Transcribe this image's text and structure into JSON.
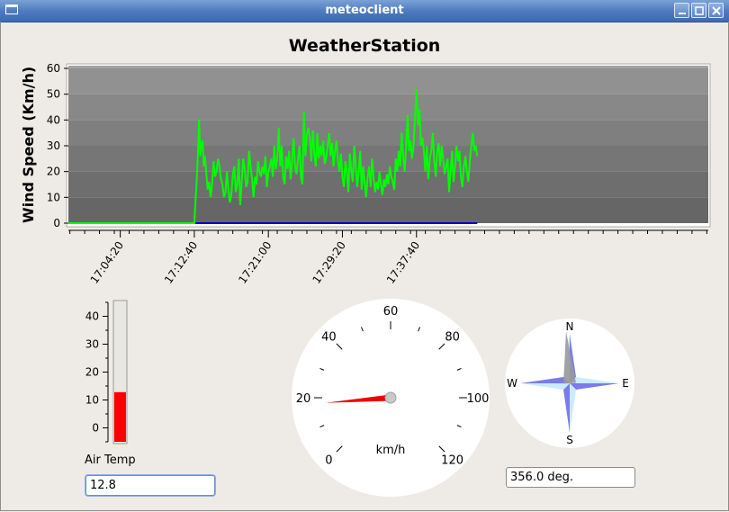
{
  "window": {
    "title": "meteoclient"
  },
  "chart_data": {
    "type": "line",
    "title": "WeatherStation",
    "ylabel": "Wind Speed (Km/h)",
    "xlabel": "",
    "ylim": [
      0,
      60
    ],
    "yticks": [
      0,
      10,
      20,
      30,
      40,
      50,
      60
    ],
    "xlim": [
      "16:58:30",
      "18:10:30"
    ],
    "xticks": [
      "17:04:20",
      "17:12:40",
      "17:21:00",
      "17:29:20",
      "17:37:40"
    ],
    "grid_bands": true,
    "series": [
      {
        "color": "#00ff00",
        "points": [
          [
            "16:58:30",
            0
          ],
          [
            "17:12:40",
            0
          ],
          [
            "17:12:48",
            8
          ],
          [
            "17:12:56",
            16
          ],
          [
            "17:13:04",
            26
          ],
          [
            "17:13:12",
            40
          ],
          [
            "17:13:20",
            26
          ],
          [
            "17:13:28",
            31
          ],
          [
            "17:13:36",
            32
          ],
          [
            "17:13:44",
            22
          ],
          [
            "17:13:52",
            26
          ],
          [
            "17:14:00",
            20
          ],
          [
            "17:14:10",
            13
          ],
          [
            "17:14:20",
            16
          ],
          [
            "17:14:30",
            10
          ],
          [
            "17:14:40",
            15
          ],
          [
            "17:14:50",
            24
          ],
          [
            "17:15:00",
            18
          ],
          [
            "17:15:10",
            20
          ],
          [
            "17:15:20",
            25
          ],
          [
            "17:15:30",
            22
          ],
          [
            "17:15:40",
            17
          ],
          [
            "17:15:50",
            15
          ],
          [
            "17:16:00",
            10
          ],
          [
            "17:16:10",
            12
          ],
          [
            "17:16:20",
            20
          ],
          [
            "17:16:30",
            13
          ],
          [
            "17:16:40",
            8
          ],
          [
            "17:16:50",
            11
          ],
          [
            "17:17:00",
            19
          ],
          [
            "17:17:10",
            22
          ],
          [
            "17:17:20",
            12
          ],
          [
            "17:17:30",
            15
          ],
          [
            "17:17:40",
            25
          ],
          [
            "17:17:50",
            7
          ],
          [
            "17:18:00",
            16
          ],
          [
            "17:18:10",
            25
          ],
          [
            "17:18:20",
            21
          ],
          [
            "17:18:30",
            14
          ],
          [
            "17:18:40",
            16
          ],
          [
            "17:18:50",
            28
          ],
          [
            "17:19:00",
            22
          ],
          [
            "17:19:10",
            17
          ],
          [
            "17:19:20",
            10
          ],
          [
            "17:19:30",
            18
          ],
          [
            "17:19:40",
            15
          ],
          [
            "17:19:50",
            24
          ],
          [
            "17:20:00",
            20
          ],
          [
            "17:20:10",
            18
          ],
          [
            "17:20:20",
            22
          ],
          [
            "17:20:30",
            19
          ],
          [
            "17:20:40",
            26
          ],
          [
            "17:20:50",
            14
          ],
          [
            "17:21:00",
            20
          ],
          [
            "17:21:10",
            22
          ],
          [
            "17:21:20",
            25
          ],
          [
            "17:21:30",
            18
          ],
          [
            "17:21:40",
            30
          ],
          [
            "17:21:50",
            21
          ],
          [
            "17:22:00",
            25
          ],
          [
            "17:22:10",
            37
          ],
          [
            "17:22:20",
            22
          ],
          [
            "17:22:30",
            30
          ],
          [
            "17:22:40",
            18
          ],
          [
            "17:22:50",
            15
          ],
          [
            "17:23:00",
            26
          ],
          [
            "17:23:10",
            21
          ],
          [
            "17:23:20",
            28
          ],
          [
            "17:23:30",
            17
          ],
          [
            "17:23:40",
            24
          ],
          [
            "17:23:50",
            33
          ],
          [
            "17:24:00",
            22
          ],
          [
            "17:24:10",
            19
          ],
          [
            "17:24:20",
            25
          ],
          [
            "17:24:30",
            30
          ],
          [
            "17:24:40",
            18
          ],
          [
            "17:24:50",
            15
          ],
          [
            "17:25:00",
            43
          ],
          [
            "17:25:10",
            26
          ],
          [
            "17:25:20",
            34
          ],
          [
            "17:25:30",
            37
          ],
          [
            "17:25:40",
            33
          ],
          [
            "17:25:50",
            24
          ],
          [
            "17:26:00",
            36
          ],
          [
            "17:26:10",
            27
          ],
          [
            "17:26:20",
            22
          ],
          [
            "17:26:30",
            35
          ],
          [
            "17:26:40",
            25
          ],
          [
            "17:26:50",
            30
          ],
          [
            "17:27:00",
            26
          ],
          [
            "17:27:10",
            32
          ],
          [
            "17:27:20",
            23
          ],
          [
            "17:27:30",
            25
          ],
          [
            "17:27:40",
            30
          ],
          [
            "17:27:50",
            35
          ],
          [
            "17:28:00",
            26
          ],
          [
            "17:28:10",
            31
          ],
          [
            "17:28:20",
            22
          ],
          [
            "17:28:30",
            28
          ],
          [
            "17:28:40",
            32
          ],
          [
            "17:28:50",
            24
          ],
          [
            "17:29:00",
            20
          ],
          [
            "17:29:10",
            27
          ],
          [
            "17:29:20",
            18
          ],
          [
            "17:29:30",
            14
          ],
          [
            "17:29:40",
            24
          ],
          [
            "17:29:50",
            20
          ],
          [
            "17:30:00",
            12
          ],
          [
            "17:30:10",
            27
          ],
          [
            "17:30:20",
            20
          ],
          [
            "17:30:30",
            16
          ],
          [
            "17:30:40",
            30
          ],
          [
            "17:30:50",
            22
          ],
          [
            "17:31:00",
            14
          ],
          [
            "17:31:10",
            20
          ],
          [
            "17:31:20",
            28
          ],
          [
            "17:31:30",
            13
          ],
          [
            "17:31:40",
            22
          ],
          [
            "17:31:50",
            16
          ],
          [
            "17:32:00",
            10
          ],
          [
            "17:32:10",
            18
          ],
          [
            "17:32:20",
            22
          ],
          [
            "17:32:30",
            14
          ],
          [
            "17:32:40",
            25
          ],
          [
            "17:32:50",
            18
          ],
          [
            "17:33:00",
            12
          ],
          [
            "17:33:10",
            16
          ],
          [
            "17:33:20",
            13
          ],
          [
            "17:33:30",
            20
          ],
          [
            "17:33:40",
            15
          ],
          [
            "17:33:50",
            11
          ],
          [
            "17:34:00",
            17
          ],
          [
            "17:34:10",
            14
          ],
          [
            "17:34:20",
            19
          ],
          [
            "17:34:30",
            15
          ],
          [
            "17:34:40",
            22
          ],
          [
            "17:34:50",
            18
          ],
          [
            "17:35:00",
            16
          ],
          [
            "17:35:10",
            13
          ],
          [
            "17:35:20",
            25
          ],
          [
            "17:35:30",
            20
          ],
          [
            "17:35:40",
            28
          ],
          [
            "17:35:50",
            22
          ],
          [
            "17:36:00",
            35
          ],
          [
            "17:36:10",
            26
          ],
          [
            "17:36:20",
            20
          ],
          [
            "17:36:30",
            30
          ],
          [
            "17:36:40",
            42
          ],
          [
            "17:36:50",
            28
          ],
          [
            "17:37:00",
            32
          ],
          [
            "17:37:10",
            25
          ],
          [
            "17:37:20",
            30
          ],
          [
            "17:37:30",
            41
          ],
          [
            "17:37:40",
            52
          ],
          [
            "17:37:50",
            38
          ],
          [
            "17:38:00",
            44
          ],
          [
            "17:38:10",
            30
          ],
          [
            "17:38:20",
            33
          ],
          [
            "17:38:30",
            28
          ],
          [
            "17:38:40",
            20
          ],
          [
            "17:38:50",
            30
          ],
          [
            "17:39:00",
            17
          ],
          [
            "17:39:10",
            25
          ],
          [
            "17:39:20",
            28
          ],
          [
            "17:39:30",
            35
          ],
          [
            "17:39:40",
            24
          ],
          [
            "17:39:50",
            18
          ],
          [
            "17:40:00",
            28
          ],
          [
            "17:40:10",
            31
          ],
          [
            "17:40:20",
            22
          ],
          [
            "17:40:30",
            30
          ],
          [
            "17:40:40",
            25
          ],
          [
            "17:40:50",
            19
          ],
          [
            "17:41:00",
            22
          ],
          [
            "17:41:10",
            25
          ],
          [
            "17:41:20",
            12
          ],
          [
            "17:41:30",
            20
          ],
          [
            "17:41:40",
            28
          ],
          [
            "17:41:50",
            16
          ],
          [
            "17:42:00",
            22
          ],
          [
            "17:42:10",
            30
          ],
          [
            "17:42:20",
            24
          ],
          [
            "17:42:30",
            28
          ],
          [
            "17:42:40",
            18
          ],
          [
            "17:42:50",
            14
          ],
          [
            "17:43:00",
            22
          ],
          [
            "17:43:10",
            26
          ],
          [
            "17:43:20",
            20
          ],
          [
            "17:43:30",
            16
          ],
          [
            "17:43:40",
            24
          ],
          [
            "17:43:50",
            30
          ],
          [
            "17:44:00",
            35
          ],
          [
            "17:44:10",
            28
          ],
          [
            "17:44:20",
            30
          ],
          [
            "17:44:30",
            26
          ]
        ]
      },
      {
        "color": "#0000cc",
        "points": [
          [
            "17:12:40",
            0
          ],
          [
            "17:44:30",
            0
          ]
        ]
      }
    ]
  },
  "thermometer": {
    "label": "Air Temp",
    "value": 12.8,
    "scale_min": -5,
    "scale_max": 45,
    "ticks": [
      "0",
      "10",
      "20",
      "30",
      "40"
    ],
    "tick_values": [
      0,
      10,
      20,
      30,
      40
    ],
    "fill_color": "#ff0000",
    "field_value": "12.8"
  },
  "speedometer": {
    "unit": "km/h",
    "min": 0,
    "max": 120,
    "value": 18,
    "labels": [
      "0",
      "20",
      "40",
      "60",
      "80",
      "100",
      "120"
    ],
    "label_values": [
      0,
      20,
      40,
      60,
      80,
      100,
      120
    ],
    "needle_color": "#ee0000"
  },
  "compass": {
    "labels": {
      "n": "N",
      "e": "E",
      "s": "S",
      "w": "W"
    },
    "heading_deg": 356.0,
    "field_value": "356.0 deg."
  }
}
